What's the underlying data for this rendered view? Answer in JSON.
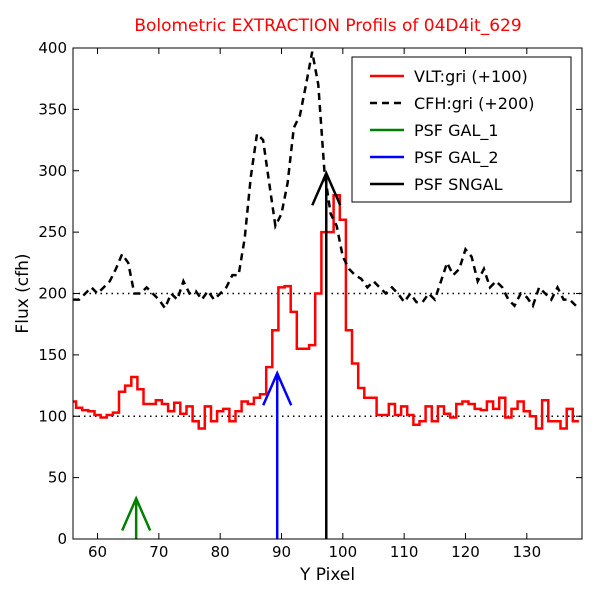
{
  "chart_data": {
    "type": "line",
    "title": "Bolometric EXTRACTION Profils of 04D4it_629",
    "title_color": "#ff0000",
    "xlabel": "Y Pixel",
    "ylabel": "Flux (cfh)",
    "xlim": [
      56,
      139
    ],
    "ylim": [
      0,
      400
    ],
    "x_ticks": [
      60,
      70,
      80,
      90,
      100,
      110,
      120,
      130
    ],
    "y_ticks": [
      0,
      50,
      100,
      150,
      200,
      250,
      300,
      350,
      400
    ],
    "grid": false,
    "legend_position": "top-right",
    "reference_lines": [
      {
        "y": 100,
        "style": "dotted",
        "color": "#000000"
      },
      {
        "y": 200,
        "style": "dotted",
        "color": "#000000"
      }
    ],
    "series": [
      {
        "name": "VLT:gri (+100)",
        "color": "#ff0000",
        "style": "steps",
        "x": [
          56,
          57,
          58,
          59,
          60,
          61,
          62,
          63,
          64,
          65,
          66,
          67,
          68,
          69,
          70,
          71,
          72,
          73,
          74,
          75,
          76,
          77,
          78,
          79,
          80,
          81,
          82,
          83,
          84,
          85,
          86,
          87,
          88,
          89,
          90,
          91,
          92,
          93,
          94,
          95,
          96,
          97,
          98,
          99,
          100,
          101,
          102,
          103,
          104,
          105,
          106,
          107,
          108,
          109,
          110,
          111,
          112,
          113,
          114,
          115,
          116,
          117,
          118,
          119,
          120,
          121,
          122,
          123,
          124,
          125,
          126,
          127,
          128,
          129,
          130,
          131,
          132,
          133,
          134,
          135,
          136,
          137,
          138
        ],
        "y": [
          112,
          107,
          105,
          104,
          101,
          99,
          101,
          103,
          120,
          125,
          132,
          122,
          110,
          110,
          113,
          110,
          104,
          111,
          102,
          108,
          96,
          90,
          108,
          96,
          104,
          106,
          96,
          104,
          112,
          110,
          115,
          118,
          140,
          170,
          205,
          206,
          185,
          155,
          155,
          158,
          200,
          250,
          250,
          280,
          260,
          170,
          143,
          123,
          115,
          115,
          101,
          101,
          110,
          101,
          108,
          101,
          93,
          96,
          108,
          96,
          108,
          102,
          99,
          110,
          112,
          110,
          106,
          105,
          112,
          106,
          115,
          99,
          106,
          112,
          104,
          100,
          90,
          113,
          96,
          96,
          90,
          106,
          96
        ]
      },
      {
        "name": "CFH:gri (+200)",
        "color": "#000000",
        "style": "dashed",
        "x": [
          56,
          57,
          58,
          59,
          60,
          61,
          62,
          63,
          64,
          65,
          66,
          67,
          68,
          69,
          70,
          71,
          72,
          73,
          74,
          75,
          76,
          77,
          78,
          79,
          80,
          81,
          82,
          83,
          84,
          85,
          86,
          87,
          88,
          89,
          90,
          91,
          92,
          93,
          94,
          95,
          96,
          97,
          98,
          99,
          100,
          101,
          102,
          103,
          104,
          105,
          106,
          107,
          108,
          109,
          110,
          111,
          112,
          113,
          114,
          115,
          116,
          117,
          118,
          119,
          120,
          121,
          122,
          123,
          124,
          125,
          126,
          127,
          128,
          129,
          130,
          131,
          132,
          133,
          134,
          135,
          136,
          137,
          138
        ],
        "y": [
          195,
          195,
          200,
          205,
          200,
          205,
          210,
          220,
          232,
          225,
          200,
          200,
          205,
          200,
          195,
          188,
          200,
          195,
          210,
          200,
          202,
          195,
          202,
          195,
          200,
          205,
          215,
          215,
          245,
          295,
          330,
          325,
          290,
          255,
          265,
          290,
          335,
          345,
          370,
          397,
          370,
          300,
          265,
          255,
          230,
          220,
          215,
          212,
          205,
          210,
          205,
          200,
          205,
          200,
          193,
          200,
          193,
          193,
          200,
          195,
          210,
          225,
          215,
          220,
          236,
          230,
          210,
          220,
          205,
          210,
          205,
          195,
          190,
          200,
          197,
          190,
          205,
          200,
          195,
          205,
          195,
          195,
          190
        ]
      }
    ],
    "psf_markers": [
      {
        "name": "PSF GAL_1",
        "color": "#008000",
        "x": 66.3,
        "height": 33
      },
      {
        "name": "PSF GAL_2",
        "color": "#0000ff",
        "x": 89.3,
        "height": 135
      },
      {
        "name": "PSF SNGAL",
        "color": "#000000",
        "x": 97.3,
        "height": 298
      }
    ],
    "legend": [
      {
        "label": "VLT:gri (+100)",
        "color": "#ff0000",
        "style": "solid"
      },
      {
        "label": "CFH:gri (+200)",
        "color": "#000000",
        "style": "dashed"
      },
      {
        "label": "PSF GAL_1",
        "color": "#008000",
        "style": "solid"
      },
      {
        "label": "PSF GAL_2",
        "color": "#0000ff",
        "style": "solid"
      },
      {
        "label": "PSF SNGAL",
        "color": "#000000",
        "style": "solid"
      }
    ]
  }
}
